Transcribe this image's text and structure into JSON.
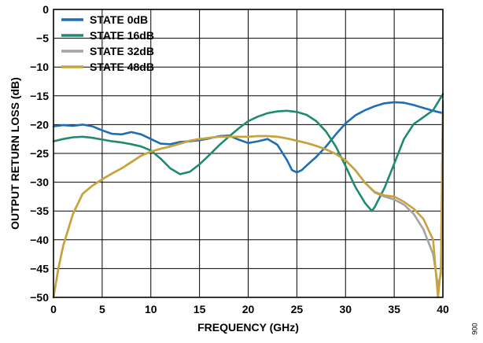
{
  "chart_data": {
    "type": "line",
    "xlabel": "FREQUENCY (GHz)",
    "ylabel": "OUTPUT RETURN LOSS (dB)",
    "xlim": [
      0,
      40
    ],
    "ylim": [
      -50,
      0
    ],
    "x_ticks": [
      0,
      5,
      10,
      15,
      20,
      25,
      30,
      35,
      40
    ],
    "y_ticks": [
      0,
      -5,
      -10,
      -15,
      -20,
      -25,
      -30,
      -35,
      -40,
      -45,
      -50
    ],
    "grid": true,
    "legend_position": "top-left",
    "figure_code": "006",
    "series": [
      {
        "name": "STATE 0dB",
        "color": "#1f6eb5",
        "points": [
          [
            0,
            -20.3
          ],
          [
            1,
            -20.1
          ],
          [
            2,
            -20.2
          ],
          [
            3,
            -20.0
          ],
          [
            4,
            -20.3
          ],
          [
            5,
            -21.0
          ],
          [
            6,
            -21.6
          ],
          [
            7,
            -21.7
          ],
          [
            8,
            -21.3
          ],
          [
            9,
            -21.7
          ],
          [
            10,
            -22.5
          ],
          [
            11,
            -23.3
          ],
          [
            12,
            -23.4
          ],
          [
            13,
            -23.0
          ],
          [
            14,
            -22.9
          ],
          [
            15,
            -22.7
          ],
          [
            16,
            -22.4
          ],
          [
            17,
            -22.0
          ],
          [
            18,
            -21.9
          ],
          [
            19,
            -22.6
          ],
          [
            20,
            -23.2
          ],
          [
            21,
            -22.9
          ],
          [
            22,
            -22.5
          ],
          [
            23,
            -23.5
          ],
          [
            24,
            -26.2
          ],
          [
            24.5,
            -27.9
          ],
          [
            25,
            -28.3
          ],
          [
            25.5,
            -27.9
          ],
          [
            26,
            -27.1
          ],
          [
            27,
            -25.6
          ],
          [
            28,
            -23.8
          ],
          [
            29,
            -21.7
          ],
          [
            30,
            -19.8
          ],
          [
            31,
            -18.4
          ],
          [
            32,
            -17.5
          ],
          [
            33,
            -16.8
          ],
          [
            34,
            -16.3
          ],
          [
            35,
            -16.1
          ],
          [
            36,
            -16.2
          ],
          [
            37,
            -16.6
          ],
          [
            38,
            -17.1
          ],
          [
            39,
            -17.6
          ],
          [
            40,
            -18.0
          ]
        ]
      },
      {
        "name": "STATE 16dB",
        "color": "#1f8a70",
        "points": [
          [
            0,
            -22.9
          ],
          [
            1,
            -22.5
          ],
          [
            2,
            -22.2
          ],
          [
            3,
            -22.1
          ],
          [
            4,
            -22.3
          ],
          [
            5,
            -22.6
          ],
          [
            6,
            -22.9
          ],
          [
            7,
            -23.1
          ],
          [
            8,
            -23.4
          ],
          [
            9,
            -23.8
          ],
          [
            10,
            -24.5
          ],
          [
            11,
            -25.9
          ],
          [
            12,
            -27.6
          ],
          [
            13,
            -28.6
          ],
          [
            14,
            -28.2
          ],
          [
            15,
            -26.9
          ],
          [
            16,
            -25.3
          ],
          [
            17,
            -23.6
          ],
          [
            18,
            -22.1
          ],
          [
            19,
            -20.7
          ],
          [
            20,
            -19.4
          ],
          [
            21,
            -18.6
          ],
          [
            22,
            -18.0
          ],
          [
            23,
            -17.7
          ],
          [
            24,
            -17.6
          ],
          [
            25,
            -17.8
          ],
          [
            26,
            -18.3
          ],
          [
            27,
            -19.4
          ],
          [
            28,
            -21.2
          ],
          [
            29,
            -23.8
          ],
          [
            30,
            -27.2
          ],
          [
            31,
            -30.8
          ],
          [
            32,
            -33.6
          ],
          [
            32.7,
            -35.0
          ],
          [
            33,
            -34.3
          ],
          [
            34,
            -31.0
          ],
          [
            35,
            -26.8
          ],
          [
            36,
            -22.5
          ],
          [
            37,
            -19.9
          ],
          [
            38,
            -18.7
          ],
          [
            39,
            -17.5
          ],
          [
            40,
            -14.7
          ]
        ]
      },
      {
        "name": "STATE 32dB",
        "color": "#a3a3a3",
        "points": [
          [
            0,
            -50
          ],
          [
            0.5,
            -45
          ],
          [
            1,
            -41
          ],
          [
            2,
            -35.5
          ],
          [
            3,
            -32
          ],
          [
            4,
            -30.6
          ],
          [
            5,
            -29.5
          ],
          [
            6,
            -28.5
          ],
          [
            7,
            -27.6
          ],
          [
            8,
            -26.5
          ],
          [
            9,
            -25.4
          ],
          [
            10,
            -24.7
          ],
          [
            11,
            -24.2
          ],
          [
            12,
            -23.8
          ],
          [
            13,
            -23.3
          ],
          [
            14,
            -22.8
          ],
          [
            15,
            -22.5
          ],
          [
            16,
            -22.3
          ],
          [
            17,
            -22.1
          ],
          [
            18,
            -22.1
          ],
          [
            19,
            -22.1
          ],
          [
            20,
            -22.1
          ],
          [
            21,
            -22.0
          ],
          [
            22,
            -22.0
          ],
          [
            23,
            -22.1
          ],
          [
            24,
            -22.4
          ],
          [
            25,
            -22.8
          ],
          [
            26,
            -23.2
          ],
          [
            27,
            -23.7
          ],
          [
            28,
            -24.3
          ],
          [
            29,
            -25.1
          ],
          [
            30,
            -26.2
          ],
          [
            31,
            -27.9
          ],
          [
            32,
            -30.1
          ],
          [
            33,
            -31.8
          ],
          [
            34,
            -32.5
          ],
          [
            35,
            -33.0
          ],
          [
            36,
            -33.9
          ],
          [
            37,
            -35.5
          ],
          [
            38,
            -38.2
          ],
          [
            39,
            -42.5
          ],
          [
            39.5,
            -48.0
          ],
          [
            39.8,
            -46.0
          ],
          [
            40,
            -16.0
          ]
        ]
      },
      {
        "name": "STATE 48dB",
        "color": "#c9a33a",
        "points": [
          [
            0,
            -50
          ],
          [
            0.5,
            -45
          ],
          [
            1,
            -41
          ],
          [
            2,
            -35.5
          ],
          [
            3,
            -32
          ],
          [
            4,
            -30.6
          ],
          [
            5,
            -29.5
          ],
          [
            6,
            -28.5
          ],
          [
            7,
            -27.6
          ],
          [
            8,
            -26.5
          ],
          [
            9,
            -25.4
          ],
          [
            10,
            -24.7
          ],
          [
            11,
            -24.2
          ],
          [
            12,
            -23.8
          ],
          [
            13,
            -23.3
          ],
          [
            14,
            -22.8
          ],
          [
            15,
            -22.5
          ],
          [
            16,
            -22.3
          ],
          [
            17,
            -22.1
          ],
          [
            18,
            -22.1
          ],
          [
            19,
            -22.1
          ],
          [
            20,
            -22.1
          ],
          [
            21,
            -22.0
          ],
          [
            22,
            -22.0
          ],
          [
            23,
            -22.1
          ],
          [
            24,
            -22.4
          ],
          [
            25,
            -22.8
          ],
          [
            26,
            -23.2
          ],
          [
            27,
            -23.7
          ],
          [
            28,
            -24.3
          ],
          [
            29,
            -25.1
          ],
          [
            30,
            -26.2
          ],
          [
            31,
            -27.9
          ],
          [
            32,
            -30.1
          ],
          [
            33,
            -31.7
          ],
          [
            34,
            -32.3
          ],
          [
            35,
            -32.5
          ],
          [
            36,
            -33.4
          ],
          [
            37,
            -34.6
          ],
          [
            38,
            -36.4
          ],
          [
            39,
            -40.0
          ],
          [
            39.5,
            -50.0
          ],
          [
            39.8,
            -45.0
          ],
          [
            40,
            -18.0
          ]
        ]
      }
    ]
  }
}
